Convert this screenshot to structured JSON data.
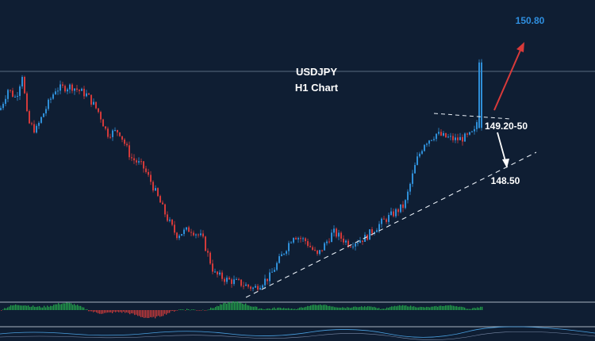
{
  "chart_data": {
    "type": "candlestick",
    "symbol": "USDJPY",
    "timeframe": "H1 Chart",
    "title_lines": [
      "USDJPY",
      "H1 Chart"
    ],
    "annotations": {
      "target_up": "150.80",
      "resistance_zone": "149.20-50",
      "support": "148.50"
    },
    "colors": {
      "background": "#0f1e33",
      "bull_candle": "#2f8fd8",
      "bear_candle": "#d23a3a",
      "target_text": "#2f8fe0",
      "arrow_up": "#d83a3a",
      "arrow_down": "#ffffff",
      "osc_positive": "#23a24a",
      "osc_negative": "#c83a3a"
    },
    "close_path": [
      [
        0,
        149.35
      ],
      [
        10,
        149.7
      ],
      [
        20,
        149.55
      ],
      [
        28,
        149.95
      ],
      [
        35,
        149.15
      ],
      [
        45,
        149.0
      ],
      [
        55,
        149.3
      ],
      [
        70,
        149.7
      ],
      [
        90,
        149.75
      ],
      [
        110,
        149.6
      ],
      [
        125,
        149.3
      ],
      [
        135,
        148.95
      ],
      [
        150,
        149.0
      ],
      [
        165,
        148.55
      ],
      [
        180,
        148.4
      ],
      [
        190,
        148.15
      ],
      [
        200,
        147.85
      ],
      [
        210,
        147.55
      ],
      [
        222,
        147.25
      ],
      [
        240,
        147.35
      ],
      [
        255,
        147.2
      ],
      [
        270,
        146.6
      ],
      [
        285,
        146.5
      ],
      [
        300,
        146.45
      ],
      [
        320,
        146.35
      ],
      [
        340,
        146.55
      ],
      [
        355,
        146.9
      ],
      [
        370,
        147.25
      ],
      [
        385,
        147.15
      ],
      [
        400,
        146.9
      ],
      [
        420,
        147.3
      ],
      [
        440,
        147.1
      ],
      [
        460,
        147.2
      ],
      [
        480,
        147.45
      ],
      [
        495,
        147.6
      ],
      [
        510,
        147.75
      ],
      [
        525,
        148.5
      ],
      [
        535,
        148.8
      ],
      [
        550,
        148.95
      ],
      [
        560,
        148.9
      ],
      [
        575,
        148.85
      ],
      [
        590,
        148.9
      ],
      [
        600,
        149.0
      ],
      [
        608,
        150.2
      ]
    ]
  }
}
